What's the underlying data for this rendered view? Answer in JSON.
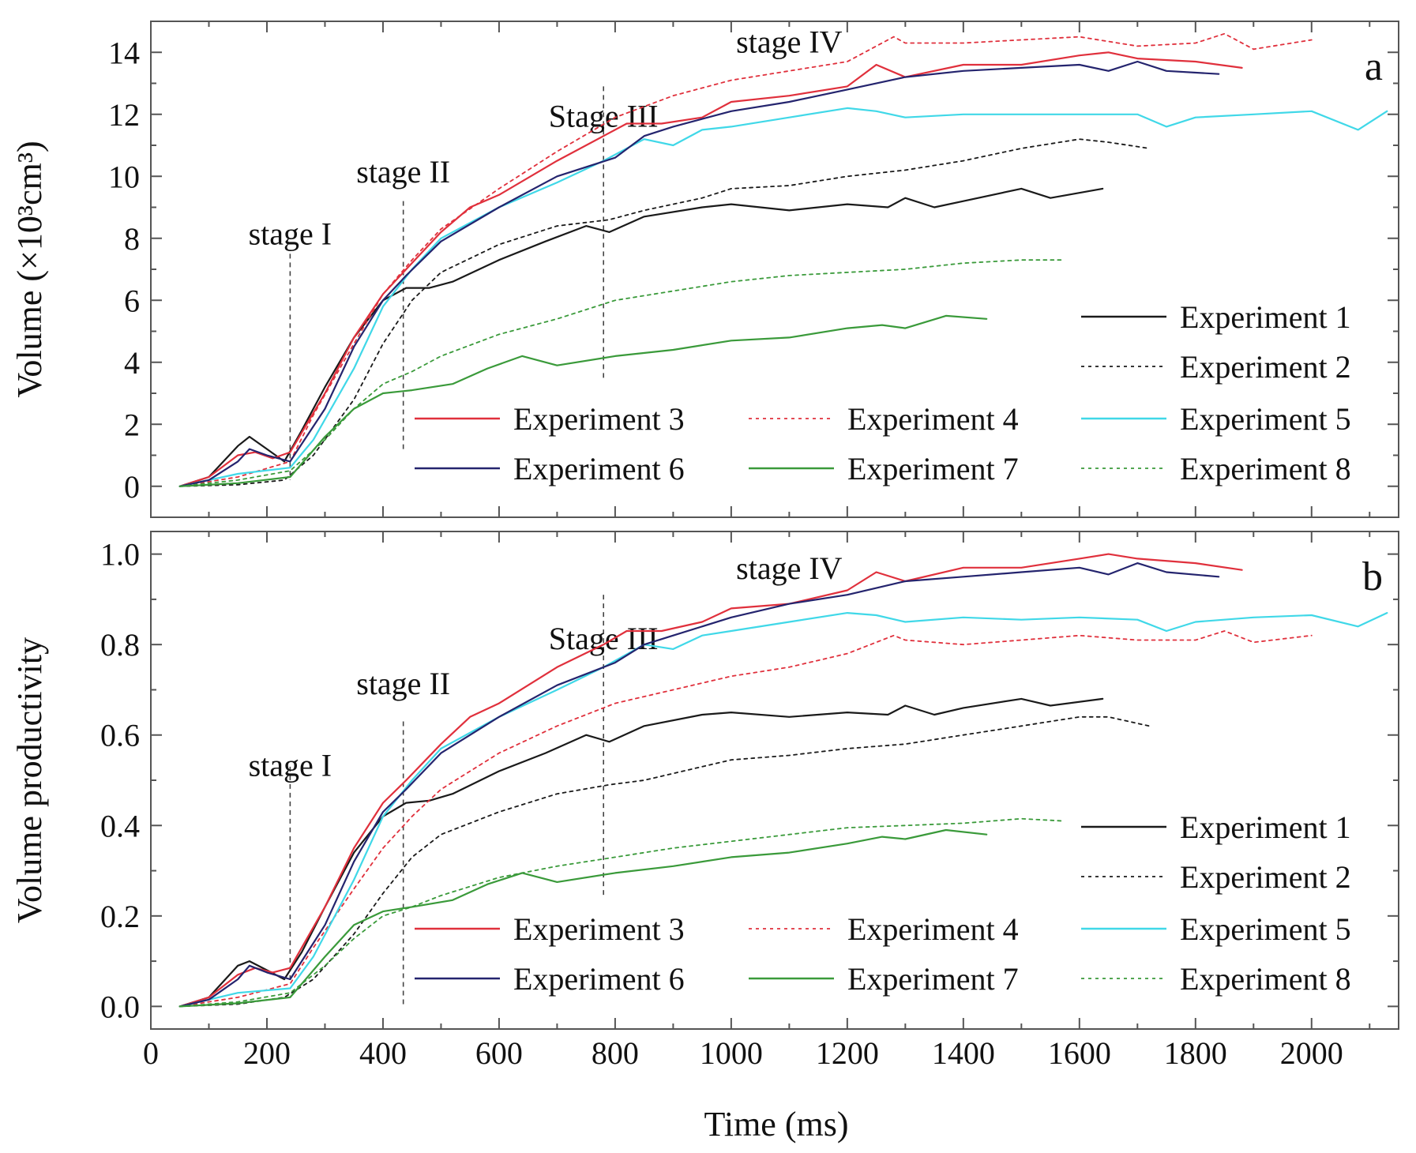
{
  "figure": {
    "xlabel": "Time (ms)",
    "x_ticks": [
      "0",
      "200",
      "400",
      "600",
      "800",
      "1000",
      "1200",
      "1400",
      "1600",
      "1800",
      "2000"
    ]
  },
  "chart_data": [
    {
      "type": "line",
      "panel_label": "a",
      "ylabel": "Volume (×10³cm³)",
      "xlabel": "",
      "xlim": [
        0,
        2150
      ],
      "ylim": [
        -1,
        15
      ],
      "x_ticks": [
        0,
        200,
        400,
        600,
        800,
        1000,
        1200,
        1400,
        1600,
        1800,
        2000
      ],
      "y_ticks": [
        0,
        2,
        4,
        6,
        8,
        10,
        12,
        14
      ],
      "y_tick_labels": [
        "0",
        "2",
        "4",
        "6",
        "8",
        "10",
        "12",
        "14"
      ],
      "stages": [
        {
          "label": "stage I",
          "x": 240,
          "y_top": 7.5,
          "y_bottom": 0.2,
          "label_y": 7.8
        },
        {
          "label": "stage II",
          "x": 435,
          "y_top": 9.2,
          "y_bottom": 1.2,
          "label_y": 9.8
        },
        {
          "label": "Stage III",
          "x": 780,
          "y_top": 12.9,
          "y_bottom": 3.5,
          "label_y": 11.6
        },
        {
          "label": "stage IV",
          "x": 1100,
          "y_top": 15.5,
          "y_bottom": 15.5,
          "label_y": 14.0
        }
      ],
      "grid": false,
      "legend_position": "bottom-right",
      "series": [
        {
          "name": "Experiment 1",
          "color": "#1a1a1a",
          "dash": "solid",
          "x": [
            50,
            100,
            150,
            170,
            200,
            230,
            260,
            300,
            350,
            400,
            440,
            480,
            520,
            600,
            680,
            750,
            790,
            850,
            950,
            1000,
            1100,
            1200,
            1270,
            1300,
            1350,
            1400,
            1500,
            1550,
            1640
          ],
          "y": [
            0,
            0.3,
            1.3,
            1.6,
            1.2,
            0.8,
            1.8,
            3.2,
            4.8,
            6.0,
            6.4,
            6.4,
            6.6,
            7.3,
            7.9,
            8.4,
            8.2,
            8.7,
            9.0,
            9.1,
            8.9,
            9.1,
            9.0,
            9.3,
            9.0,
            9.2,
            9.6,
            9.3,
            9.6
          ]
        },
        {
          "name": "Experiment 2",
          "color": "#1a1a1a",
          "dash": "4,5",
          "x": [
            50,
            150,
            230,
            280,
            350,
            400,
            450,
            500,
            600,
            700,
            790,
            850,
            950,
            1000,
            1100,
            1200,
            1300,
            1400,
            1500,
            1600,
            1650,
            1720
          ],
          "y": [
            0,
            0.05,
            0.2,
            1.0,
            2.8,
            4.6,
            6.0,
            6.9,
            7.8,
            8.4,
            8.6,
            8.9,
            9.3,
            9.6,
            9.7,
            10.0,
            10.2,
            10.5,
            10.9,
            11.2,
            11.1,
            10.9
          ]
        },
        {
          "name": "Experiment 3",
          "color": "#e0303c",
          "dash": "solid",
          "x": [
            50,
            100,
            150,
            180,
            210,
            240,
            300,
            350,
            400,
            440,
            500,
            550,
            600,
            700,
            780,
            820,
            880,
            950,
            1000,
            1100,
            1200,
            1250,
            1300,
            1400,
            1500,
            1600,
            1650,
            1700,
            1800,
            1880
          ],
          "y": [
            0,
            0.3,
            1.0,
            1.1,
            0.9,
            1.1,
            3.0,
            4.8,
            6.2,
            7.0,
            8.2,
            9.0,
            9.4,
            10.5,
            11.3,
            11.7,
            11.7,
            11.9,
            12.4,
            12.6,
            12.9,
            13.6,
            13.2,
            13.6,
            13.6,
            13.9,
            14.0,
            13.8,
            13.7,
            13.5
          ]
        },
        {
          "name": "Experiment 4",
          "color": "#e0303c",
          "dash": "4,5",
          "x": [
            50,
            150,
            240,
            280,
            350,
            400,
            450,
            500,
            600,
            700,
            800,
            900,
            1000,
            1100,
            1200,
            1280,
            1300,
            1400,
            1500,
            1600,
            1700,
            1800,
            1850,
            1900,
            2000
          ],
          "y": [
            0,
            0.3,
            0.8,
            2.3,
            4.6,
            6.2,
            7.3,
            8.3,
            9.6,
            10.8,
            11.9,
            12.6,
            13.1,
            13.4,
            13.7,
            14.5,
            14.3,
            14.3,
            14.4,
            14.5,
            14.2,
            14.3,
            14.6,
            14.1,
            14.4
          ]
        },
        {
          "name": "Experiment 5",
          "color": "#40d8e8",
          "dash": "solid",
          "x": [
            50,
            150,
            240,
            280,
            350,
            400,
            450,
            500,
            600,
            700,
            780,
            850,
            900,
            950,
            1000,
            1100,
            1200,
            1250,
            1300,
            1400,
            1500,
            1600,
            1700,
            1750,
            1800,
            1900,
            2000,
            2080,
            2130
          ],
          "y": [
            0,
            0.4,
            0.6,
            1.5,
            3.8,
            5.8,
            7.0,
            8.0,
            9.0,
            9.8,
            10.5,
            11.2,
            11.0,
            11.5,
            11.6,
            11.9,
            12.2,
            12.1,
            11.9,
            12.0,
            12.0,
            12.0,
            12.0,
            11.6,
            11.9,
            12.0,
            12.1,
            11.5,
            12.1
          ]
        },
        {
          "name": "Experiment 6",
          "color": "#24246e",
          "dash": "solid",
          "x": [
            50,
            100,
            150,
            170,
            200,
            240,
            300,
            350,
            400,
            440,
            500,
            600,
            700,
            800,
            850,
            900,
            1000,
            1100,
            1200,
            1300,
            1400,
            1500,
            1600,
            1650,
            1700,
            1750,
            1840
          ],
          "y": [
            0,
            0.2,
            0.8,
            1.2,
            1.0,
            0.8,
            2.5,
            4.5,
            6.0,
            6.8,
            7.9,
            9.0,
            10.0,
            10.6,
            11.3,
            11.6,
            12.1,
            12.4,
            12.8,
            13.2,
            13.4,
            13.5,
            13.6,
            13.4,
            13.7,
            13.4,
            13.3
          ]
        },
        {
          "name": "Experiment 7",
          "color": "#3a9a3a",
          "dash": "solid",
          "x": [
            50,
            150,
            240,
            300,
            350,
            400,
            450,
            520,
            580,
            640,
            700,
            800,
            900,
            1000,
            1100,
            1200,
            1260,
            1300,
            1370,
            1440
          ],
          "y": [
            0,
            0.1,
            0.3,
            1.6,
            2.5,
            3.0,
            3.1,
            3.3,
            3.8,
            4.2,
            3.9,
            4.2,
            4.4,
            4.7,
            4.8,
            5.1,
            5.2,
            5.1,
            5.5,
            5.4
          ]
        },
        {
          "name": "Experiment 8",
          "color": "#3a9a3a",
          "dash": "4,5",
          "x": [
            50,
            150,
            240,
            300,
            350,
            400,
            450,
            500,
            600,
            700,
            800,
            900,
            1000,
            1100,
            1200,
            1300,
            1400,
            1500,
            1570
          ],
          "y": [
            0,
            0.2,
            0.5,
            1.5,
            2.5,
            3.3,
            3.7,
            4.2,
            4.9,
            5.4,
            6.0,
            6.3,
            6.6,
            6.8,
            6.9,
            7.0,
            7.2,
            7.3,
            7.3
          ]
        }
      ]
    },
    {
      "type": "line",
      "panel_label": "b",
      "ylabel": "Volume productivity",
      "xlabel": "Time (ms)",
      "xlim": [
        0,
        2150
      ],
      "ylim": [
        -0.05,
        1.05
      ],
      "x_ticks": [
        0,
        200,
        400,
        600,
        800,
        1000,
        1200,
        1400,
        1600,
        1800,
        2000
      ],
      "y_ticks": [
        0,
        0.2,
        0.4,
        0.6,
        0.8,
        1.0
      ],
      "y_tick_labels": [
        "0.0",
        "0.2",
        "0.4",
        "0.6",
        "0.8",
        "1.0"
      ],
      "stages": [
        {
          "label": "stage I",
          "x": 240,
          "y_top": 0.53,
          "y_bottom": 0.05,
          "label_y": 0.51
        },
        {
          "label": "stage II",
          "x": 435,
          "y_top": 0.63,
          "y_bottom": 0.0,
          "label_y": 0.69
        },
        {
          "label": "Stage III",
          "x": 780,
          "y_top": 0.91,
          "y_bottom": 0.24,
          "label_y": 0.79
        },
        {
          "label": "stage IV",
          "x": 1100,
          "y_top": 1.1,
          "y_bottom": 1.1,
          "label_y": 0.945
        }
      ],
      "grid": false,
      "legend_position": "bottom-right",
      "series": [
        {
          "name": "Experiment 1",
          "color": "#1a1a1a",
          "dash": "solid",
          "x": [
            50,
            100,
            150,
            170,
            200,
            230,
            260,
            300,
            350,
            400,
            440,
            480,
            520,
            600,
            680,
            750,
            790,
            850,
            950,
            1000,
            1100,
            1200,
            1270,
            1300,
            1350,
            1400,
            1500,
            1550,
            1640
          ],
          "y": [
            0,
            0.02,
            0.09,
            0.1,
            0.08,
            0.06,
            0.12,
            0.22,
            0.34,
            0.42,
            0.45,
            0.455,
            0.47,
            0.52,
            0.56,
            0.6,
            0.585,
            0.62,
            0.645,
            0.65,
            0.64,
            0.65,
            0.645,
            0.665,
            0.645,
            0.66,
            0.68,
            0.665,
            0.68
          ]
        },
        {
          "name": "Experiment 2",
          "color": "#1a1a1a",
          "dash": "4,5",
          "x": [
            50,
            150,
            230,
            280,
            350,
            400,
            450,
            500,
            600,
            700,
            790,
            850,
            950,
            1000,
            1100,
            1200,
            1300,
            1400,
            1500,
            1600,
            1650,
            1720
          ],
          "y": [
            0,
            0.005,
            0.02,
            0.06,
            0.16,
            0.25,
            0.33,
            0.38,
            0.43,
            0.47,
            0.49,
            0.5,
            0.53,
            0.545,
            0.555,
            0.57,
            0.58,
            0.6,
            0.62,
            0.64,
            0.64,
            0.62
          ]
        },
        {
          "name": "Experiment 3",
          "color": "#e0303c",
          "dash": "solid",
          "x": [
            50,
            100,
            150,
            180,
            210,
            240,
            300,
            350,
            400,
            440,
            500,
            550,
            600,
            700,
            780,
            820,
            880,
            950,
            1000,
            1100,
            1200,
            1250,
            1300,
            1400,
            1500,
            1600,
            1650,
            1700,
            1800,
            1880
          ],
          "y": [
            0,
            0.02,
            0.07,
            0.085,
            0.075,
            0.085,
            0.22,
            0.35,
            0.45,
            0.5,
            0.58,
            0.64,
            0.67,
            0.75,
            0.8,
            0.83,
            0.83,
            0.85,
            0.88,
            0.89,
            0.92,
            0.96,
            0.94,
            0.97,
            0.97,
            0.99,
            1.0,
            0.99,
            0.98,
            0.965
          ]
        },
        {
          "name": "Experiment 4",
          "color": "#e0303c",
          "dash": "4,5",
          "x": [
            50,
            150,
            240,
            280,
            350,
            400,
            450,
            500,
            600,
            700,
            800,
            900,
            1000,
            1100,
            1200,
            1280,
            1300,
            1400,
            1500,
            1600,
            1700,
            1800,
            1850,
            1900,
            2000
          ],
          "y": [
            0,
            0.02,
            0.05,
            0.13,
            0.26,
            0.35,
            0.42,
            0.48,
            0.56,
            0.62,
            0.67,
            0.7,
            0.73,
            0.75,
            0.78,
            0.82,
            0.81,
            0.8,
            0.81,
            0.82,
            0.81,
            0.81,
            0.83,
            0.805,
            0.82
          ]
        },
        {
          "name": "Experiment 5",
          "color": "#40d8e8",
          "dash": "solid",
          "x": [
            50,
            150,
            240,
            280,
            350,
            400,
            450,
            500,
            600,
            700,
            780,
            850,
            900,
            950,
            1000,
            1100,
            1200,
            1250,
            1300,
            1400,
            1500,
            1600,
            1700,
            1750,
            1800,
            1900,
            2000,
            2080,
            2130
          ],
          "y": [
            0,
            0.03,
            0.04,
            0.11,
            0.28,
            0.42,
            0.5,
            0.57,
            0.64,
            0.7,
            0.75,
            0.8,
            0.79,
            0.82,
            0.83,
            0.85,
            0.87,
            0.865,
            0.85,
            0.86,
            0.855,
            0.86,
            0.855,
            0.83,
            0.85,
            0.86,
            0.865,
            0.84,
            0.87
          ]
        },
        {
          "name": "Experiment 6",
          "color": "#24246e",
          "dash": "solid",
          "x": [
            50,
            100,
            150,
            170,
            200,
            240,
            300,
            350,
            400,
            440,
            500,
            600,
            700,
            800,
            850,
            900,
            1000,
            1100,
            1200,
            1300,
            1400,
            1500,
            1600,
            1650,
            1700,
            1750,
            1840
          ],
          "y": [
            0,
            0.015,
            0.06,
            0.09,
            0.075,
            0.06,
            0.18,
            0.32,
            0.43,
            0.48,
            0.56,
            0.64,
            0.71,
            0.76,
            0.8,
            0.82,
            0.86,
            0.89,
            0.91,
            0.94,
            0.95,
            0.96,
            0.97,
            0.955,
            0.98,
            0.96,
            0.95
          ]
        },
        {
          "name": "Experiment 7",
          "color": "#3a9a3a",
          "dash": "solid",
          "x": [
            50,
            150,
            240,
            300,
            350,
            400,
            450,
            520,
            580,
            640,
            700,
            800,
            900,
            1000,
            1100,
            1200,
            1260,
            1300,
            1370,
            1440
          ],
          "y": [
            0,
            0.007,
            0.02,
            0.11,
            0.18,
            0.21,
            0.22,
            0.235,
            0.27,
            0.295,
            0.275,
            0.295,
            0.31,
            0.33,
            0.34,
            0.36,
            0.375,
            0.37,
            0.39,
            0.38
          ]
        },
        {
          "name": "Experiment 8",
          "color": "#3a9a3a",
          "dash": "4,5",
          "x": [
            50,
            150,
            240,
            300,
            350,
            400,
            450,
            500,
            600,
            700,
            800,
            900,
            1000,
            1100,
            1200,
            1300,
            1400,
            1500,
            1570
          ],
          "y": [
            0,
            0.01,
            0.03,
            0.09,
            0.15,
            0.2,
            0.22,
            0.245,
            0.285,
            0.31,
            0.33,
            0.35,
            0.365,
            0.38,
            0.395,
            0.4,
            0.405,
            0.415,
            0.41
          ]
        }
      ]
    }
  ]
}
